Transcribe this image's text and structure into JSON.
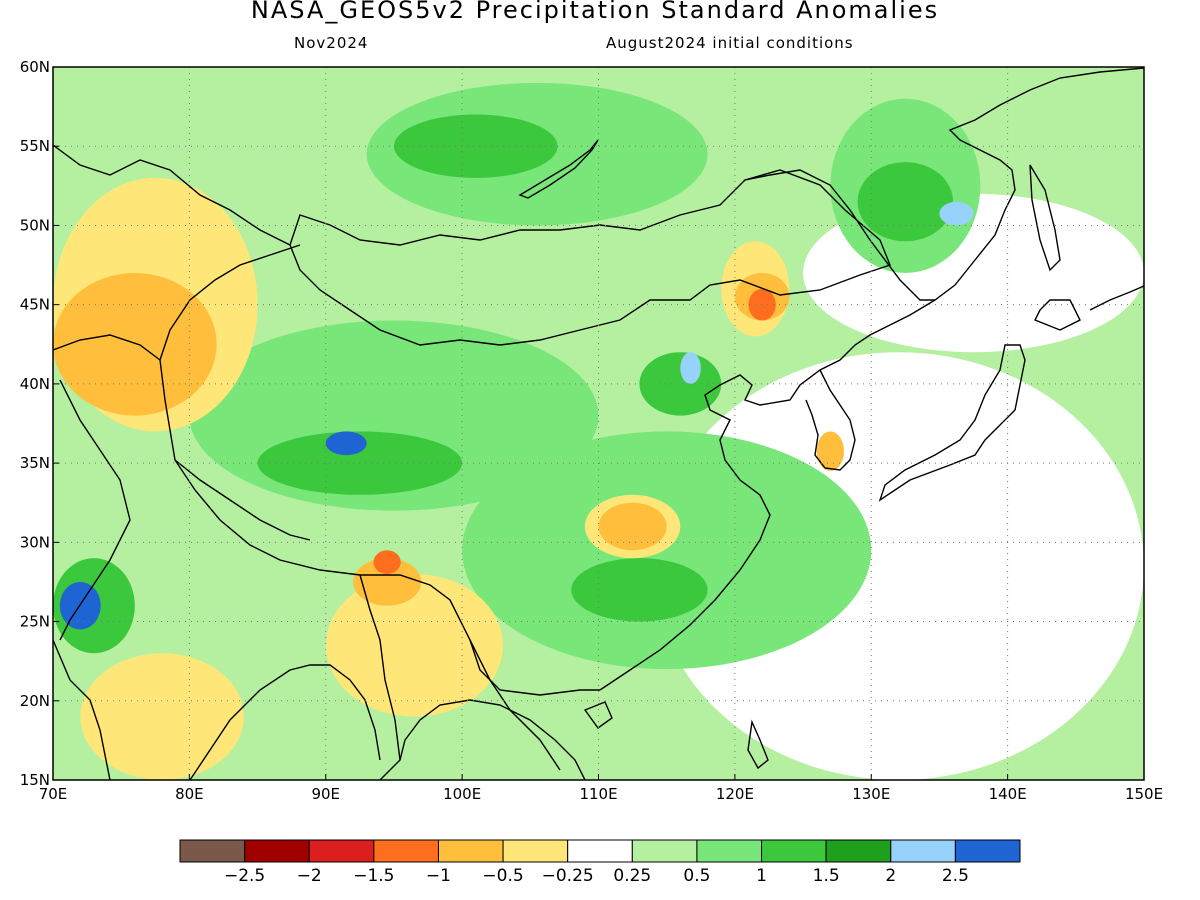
{
  "title": "NASA_GEOS5v2 Precipitation Standard Anomalies",
  "valid_month": "Nov2024",
  "init_conditions": "August2024 initial conditions",
  "map": {
    "lon_range": [
      70,
      150
    ],
    "lat_range": [
      15,
      60
    ],
    "lon_ticks": [
      "70E",
      "80E",
      "90E",
      "100E",
      "110E",
      "120E",
      "130E",
      "140E",
      "150E"
    ],
    "lat_ticks": [
      "15N",
      "20N",
      "25N",
      "30N",
      "35N",
      "40N",
      "45N",
      "50N",
      "55N",
      "60N"
    ],
    "grid": "dotted",
    "regions": [
      {
        "category": "wet-1",
        "color": "#b4f0a0",
        "lon": [
          70,
          150
        ],
        "lat": [
          15,
          60
        ],
        "note": "background"
      },
      {
        "category": "neutral",
        "color": "#ffffff",
        "lon": [
          114,
          150
        ],
        "lat": [
          15,
          42
        ]
      },
      {
        "category": "neutral",
        "color": "#ffffff",
        "lon": [
          125,
          150
        ],
        "lat": [
          42,
          52
        ]
      },
      {
        "category": "wet-2",
        "color": "#78e678",
        "lon": [
          100,
          130
        ],
        "lat": [
          22,
          37
        ]
      },
      {
        "category": "wet-2",
        "color": "#78e678",
        "lon": [
          80,
          110
        ],
        "lat": [
          32,
          44
        ]
      },
      {
        "category": "wet-2",
        "color": "#78e678",
        "lon": [
          93,
          118
        ],
        "lat": [
          50,
          59
        ]
      },
      {
        "category": "wet-2",
        "color": "#78e678",
        "lon": [
          127,
          138
        ],
        "lat": [
          47,
          58
        ]
      },
      {
        "category": "wet-3",
        "color": "#3cc83c",
        "lon": [
          85,
          100
        ],
        "lat": [
          33,
          37
        ]
      },
      {
        "category": "wet-3",
        "color": "#3cc83c",
        "lon": [
          95,
          107
        ],
        "lat": [
          53,
          57
        ]
      },
      {
        "category": "wet-3",
        "color": "#3cc83c",
        "lon": [
          129,
          136
        ],
        "lat": [
          49,
          54
        ]
      },
      {
        "category": "wet-3",
        "color": "#3cc83c",
        "lon": [
          113,
          119
        ],
        "lat": [
          38,
          42
        ]
      },
      {
        "category": "wet-3",
        "color": "#3cc83c",
        "lon": [
          108,
          118
        ],
        "lat": [
          25,
          29
        ]
      },
      {
        "category": "wet-3",
        "color": "#3cc83c",
        "lon": [
          70,
          76
        ],
        "lat": [
          23,
          29
        ]
      },
      {
        "category": "wet-5",
        "color": "#1e64d2",
        "lon": [
          90,
          93
        ],
        "lat": [
          35.5,
          37
        ]
      },
      {
        "category": "wet-5",
        "color": "#1e64d2",
        "lon": [
          70.5,
          73.5
        ],
        "lat": [
          24.5,
          27.5
        ]
      },
      {
        "category": "wet-4",
        "color": "#96d2fa",
        "lon": [
          116,
          117.5
        ],
        "lat": [
          40,
          42
        ]
      },
      {
        "category": "wet-4",
        "color": "#96d2fa",
        "lon": [
          135,
          137.5
        ],
        "lat": [
          50,
          51.5
        ]
      },
      {
        "category": "dry-1",
        "color": "#ffe678",
        "lon": [
          70,
          85
        ],
        "lat": [
          37,
          53
        ]
      },
      {
        "category": "dry-1",
        "color": "#ffe678",
        "lon": [
          72,
          84
        ],
        "lat": [
          15,
          23
        ]
      },
      {
        "category": "dry-1",
        "color": "#ffe678",
        "lon": [
          90,
          103
        ],
        "lat": [
          19,
          28
        ]
      },
      {
        "category": "dry-1",
        "color": "#ffe678",
        "lon": [
          109,
          116
        ],
        "lat": [
          29,
          33
        ]
      },
      {
        "category": "dry-1",
        "color": "#ffe678",
        "lon": [
          119,
          124
        ],
        "lat": [
          43,
          49
        ]
      },
      {
        "category": "dry-2",
        "color": "#ffbe3c",
        "lon": [
          70,
          82
        ],
        "lat": [
          38,
          47
        ]
      },
      {
        "category": "dry-2",
        "color": "#ffbe3c",
        "lon": [
          110,
          115
        ],
        "lat": [
          29.5,
          32.5
        ]
      },
      {
        "category": "dry-2",
        "color": "#ffbe3c",
        "lon": [
          120,
          124
        ],
        "lat": [
          44,
          47
        ]
      },
      {
        "category": "dry-2",
        "color": "#ffbe3c",
        "lon": [
          92,
          97
        ],
        "lat": [
          26,
          29
        ]
      },
      {
        "category": "dry-2",
        "color": "#ffbe3c",
        "lon": [
          126,
          128
        ],
        "lat": [
          34.5,
          37
        ]
      },
      {
        "category": "dry-3",
        "color": "#ff6e1e",
        "lon": [
          121,
          123
        ],
        "lat": [
          44,
          46
        ]
      },
      {
        "category": "dry-3",
        "color": "#ff6e1e",
        "lon": [
          93.5,
          95.5
        ],
        "lat": [
          28,
          29.5
        ]
      }
    ]
  },
  "colorbar": {
    "colors": [
      "#7a584a",
      "#a00000",
      "#dc1e1e",
      "#ff6e1e",
      "#ffbe3c",
      "#ffe678",
      "#ffffff",
      "#b4f0a0",
      "#78e678",
      "#3cc83c",
      "#1ea01e",
      "#96d2fa",
      "#1e64d2"
    ],
    "tick_labels": [
      "−2.5",
      "−2",
      "−1.5",
      "−1",
      "−0.5",
      "−0.25",
      "0.25",
      "0.5",
      "1",
      "1.5",
      "2",
      "2.5"
    ]
  }
}
